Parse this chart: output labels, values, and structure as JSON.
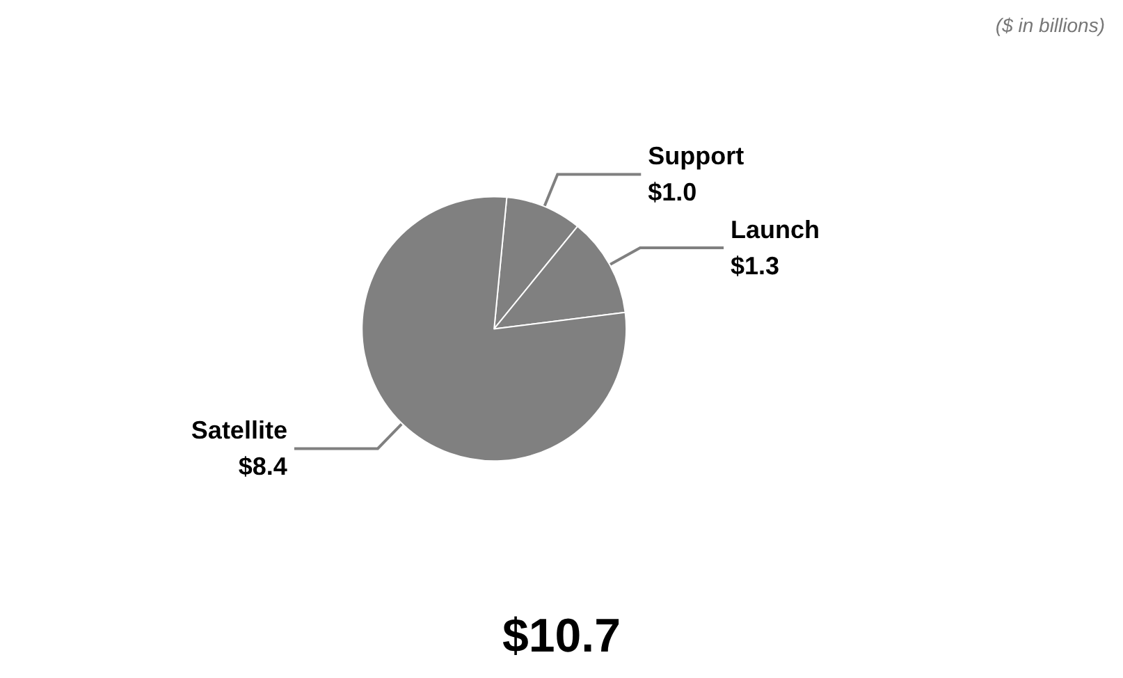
{
  "chart_data": {
    "type": "pie",
    "title": "$10.7",
    "subtitle": "($ in billions)",
    "categories": [
      "Support",
      "Launch",
      "Satellite"
    ],
    "values": [
      1.0,
      1.3,
      8.4
    ],
    "value_labels": [
      "$1.0",
      "$1.3",
      "$8.4"
    ],
    "colors": [
      "#808080",
      "#808080",
      "#808080"
    ]
  }
}
